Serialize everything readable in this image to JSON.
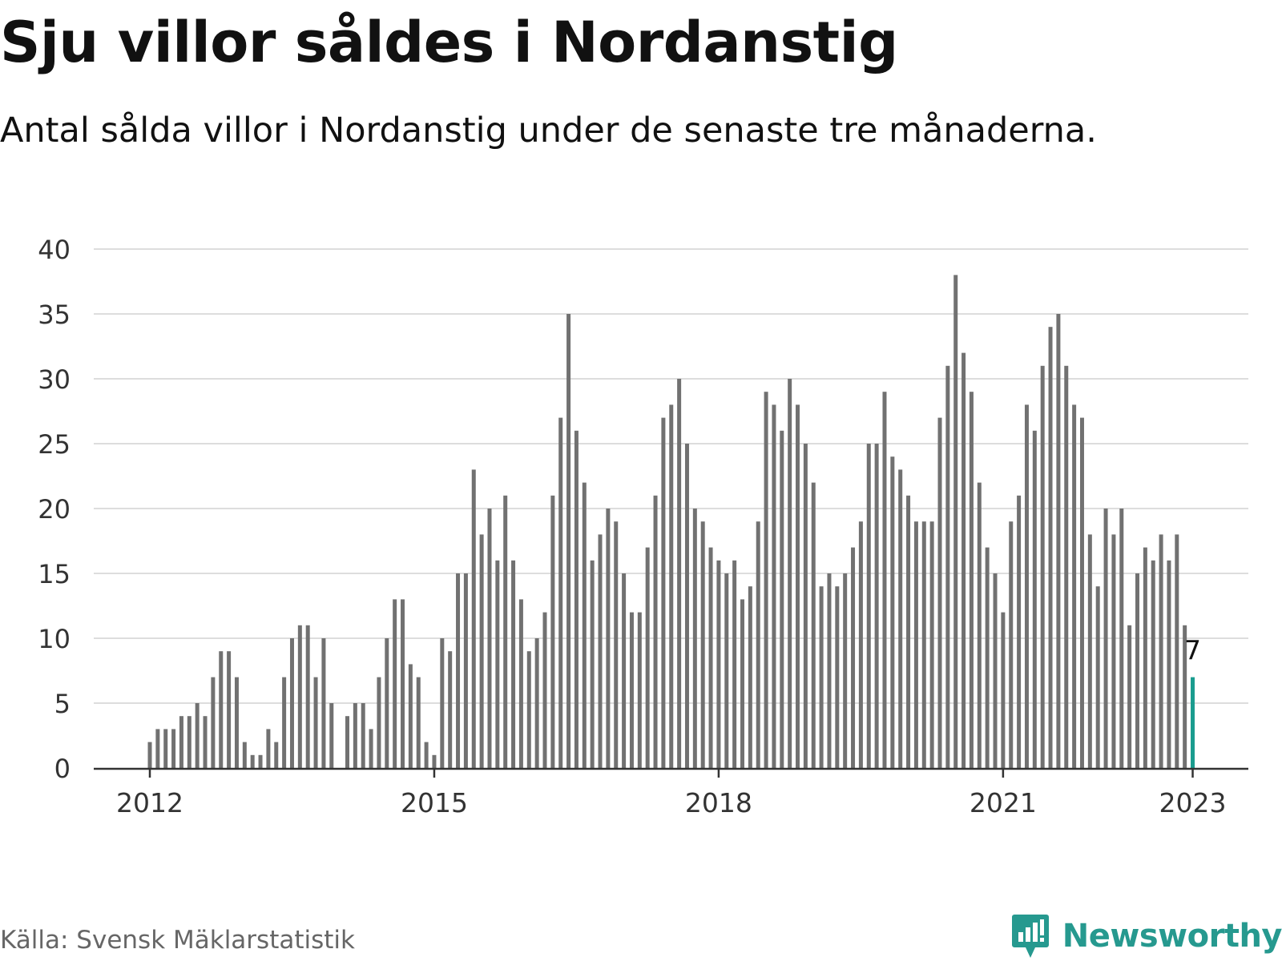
{
  "title": "Sju villor såldes i Nordanstig",
  "subtitle": "Antal sålda villor i Nordanstig under de senaste tre månaderna.",
  "source": "Källa: Svensk Mäklarstatistik",
  "brand": {
    "name": "Newsworthy",
    "color": "#26998f"
  },
  "colors": {
    "bar": "#717171",
    "highlight": "#1a9c8f",
    "grid": "#dddddd",
    "axis": "#333333"
  },
  "chart_data": {
    "type": "bar",
    "start": "2012-01",
    "ylim": [
      0,
      40
    ],
    "yticks": [
      0,
      5,
      10,
      15,
      20,
      25,
      30,
      35,
      40
    ],
    "xticks": [
      {
        "label": "2012",
        "date": "2012-01"
      },
      {
        "label": "2015",
        "date": "2015-01"
      },
      {
        "label": "2018",
        "date": "2018-01"
      },
      {
        "label": "2021",
        "date": "2021-01"
      },
      {
        "label": "2023",
        "date": "2023-01"
      }
    ],
    "values": [
      2,
      3,
      3,
      3,
      4,
      4,
      5,
      4,
      7,
      9,
      9,
      7,
      2,
      1,
      1,
      3,
      2,
      7,
      10,
      11,
      11,
      7,
      10,
      5,
      0,
      4,
      5,
      5,
      3,
      7,
      10,
      13,
      13,
      8,
      7,
      2,
      1,
      10,
      9,
      15,
      15,
      23,
      18,
      20,
      16,
      21,
      16,
      13,
      9,
      10,
      12,
      21,
      27,
      35,
      26,
      22,
      16,
      18,
      20,
      19,
      15,
      12,
      12,
      17,
      21,
      27,
      28,
      30,
      25,
      20,
      19,
      17,
      16,
      15,
      16,
      13,
      14,
      19,
      29,
      28,
      26,
      30,
      28,
      25,
      22,
      14,
      15,
      14,
      15,
      17,
      19,
      25,
      25,
      29,
      24,
      23,
      21,
      19,
      19,
      19,
      27,
      31,
      38,
      32,
      29,
      22,
      17,
      15,
      12,
      19,
      21,
      28,
      26,
      31,
      34,
      35,
      31,
      28,
      27,
      18,
      14,
      20,
      18,
      20,
      11,
      15,
      17,
      16,
      18,
      16,
      18,
      11,
      7
    ],
    "highlight": {
      "date": "2023-01",
      "value": 7,
      "label": "7"
    }
  }
}
